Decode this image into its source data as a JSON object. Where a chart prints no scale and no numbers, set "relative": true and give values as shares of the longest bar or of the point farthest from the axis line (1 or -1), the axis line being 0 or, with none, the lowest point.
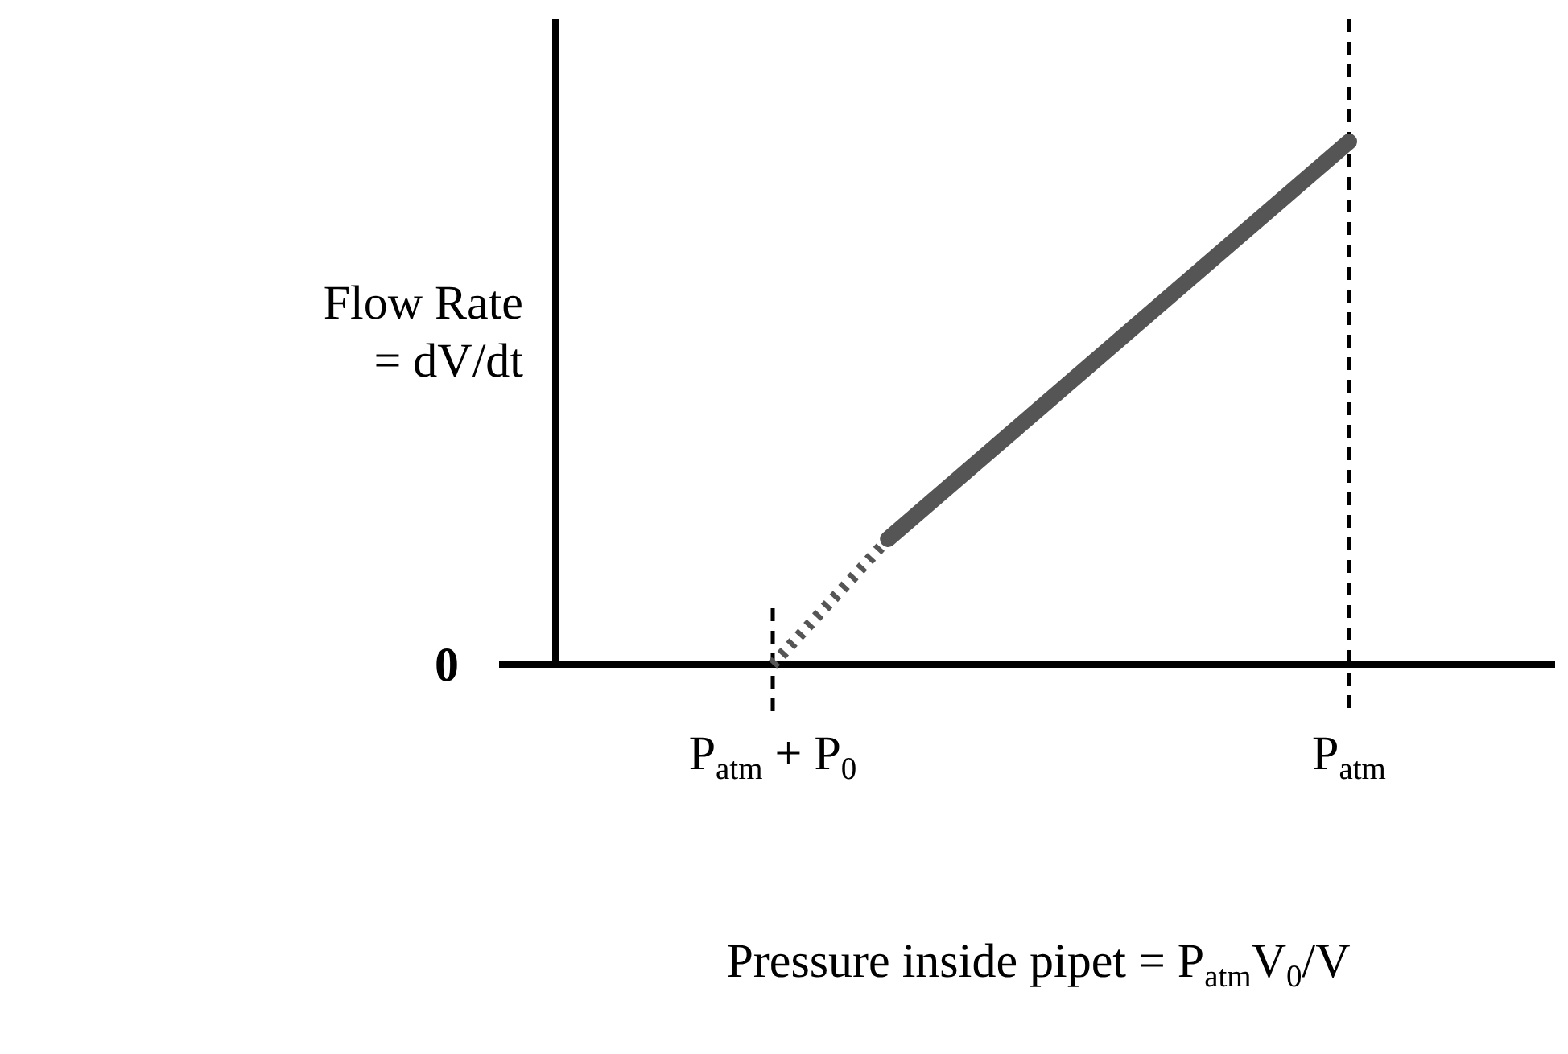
{
  "chart_data": {
    "type": "line",
    "relative": true,
    "xlabel": "Pressure inside pipet = P$_{atm}$V$_{0}$/V",
    "ylabel": "Flow Rate = dV/dt",
    "categories": [
      "P$_{atm}$ + P$_{0}$",
      null,
      null,
      null,
      null,
      null,
      null,
      null,
      null,
      null,
      "P$_{atm}$"
    ],
    "series": [
      {
        "color": "#555555",
        "line_style": "dotted",
        "values": [
          0,
          0.12,
          0.24,
          null,
          null,
          null,
          null,
          null,
          null,
          null,
          null
        ]
      },
      {
        "color": "#555555",
        "line_style": "solid",
        "values": [
          null,
          null,
          0.24,
          0.335,
          0.43,
          0.525,
          0.62,
          0.715,
          0.81,
          0.905,
          1
        ]
      }
    ],
    "annotations": [
      "0"
    ]
  }
}
